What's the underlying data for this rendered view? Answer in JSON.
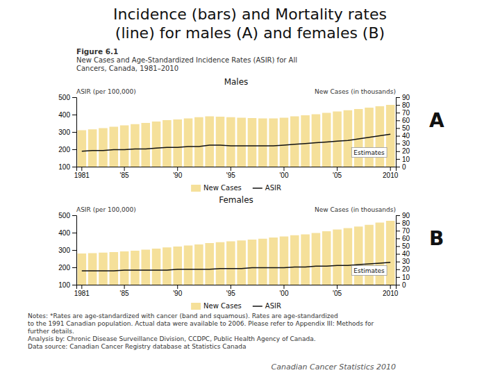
{
  "title": [
    "Incidence (bars) and Mortality rates",
    "(line) for males (A) and females (B)"
  ],
  "subtitle": [
    "Figure 6.1",
    "New Cases and Age-Standardized Incidence Rates (ASIR) for All",
    "Cancers, Canada, 1981–2010"
  ],
  "notes": [
    "Notes: *Rates are age-standardized with cancer (band and squamous). Rates are age-standardized",
    "to the 1991 Canadian population. Actual data were available to 2006. Please refer to Appendix III: Methods for",
    "further details.",
    "Analysis by: Chronic Disease Surveillance Division, CCDPC, Public Health Agency of Canada.",
    "Data source: Canadian Cancer Registry database at Statistics Canada"
  ],
  "source": "Canadian Cancer Statistics 2010",
  "chart_data": [
    {
      "type": "bar",
      "title": "Males",
      "categories": [
        "1981",
        null,
        null,
        null,
        "'85",
        null,
        null,
        null,
        null,
        "'90",
        null,
        null,
        null,
        null,
        "'95",
        null,
        null,
        null,
        null,
        "'00",
        null,
        null,
        null,
        null,
        "'05",
        null,
        null,
        null,
        null,
        "2010"
      ],
      "series": [
        {
          "name": "New Cases",
          "type": "bar",
          "color": "#f5e09a",
          "values": [
            310,
            315,
            322,
            330,
            338,
            345,
            352,
            360,
            368,
            372,
            378,
            385,
            390,
            388,
            385,
            382,
            380,
            378,
            378,
            382,
            390,
            396,
            402,
            410,
            418,
            425,
            432,
            440,
            448,
            456
          ]
        },
        {
          "name": "ASIR",
          "type": "line",
          "color": "#111111",
          "axis": "y2",
          "values": [
            20,
            21,
            21,
            22,
            22,
            23,
            23,
            24,
            25,
            25,
            26,
            26,
            28,
            28,
            27,
            27,
            27,
            27,
            27,
            28,
            29,
            30,
            31,
            32,
            33,
            34,
            36,
            38,
            40,
            42
          ]
        }
      ],
      "ylabel": "ASIR (per 100,000)",
      "y2label": "New Cases (in thousands)",
      "ylim": [
        100,
        500
      ],
      "yticks": [
        100,
        200,
        300,
        400,
        500
      ],
      "y2lim": [
        0,
        90
      ],
      "y2ticks": [
        0,
        10,
        20,
        30,
        40,
        50,
        60,
        70,
        80,
        90
      ],
      "annotations": [
        "Estimates",
        "A"
      ],
      "legend": "bottom",
      "grid": false
    },
    {
      "type": "bar",
      "title": "Females",
      "categories": [
        "1981",
        null,
        null,
        null,
        "'85",
        null,
        null,
        null,
        null,
        "'90",
        null,
        null,
        null,
        null,
        "'95",
        null,
        null,
        null,
        null,
        "'00",
        null,
        null,
        null,
        null,
        "'05",
        null,
        null,
        null,
        null,
        "2010"
      ],
      "series": [
        {
          "name": "New Cases",
          "type": "bar",
          "color": "#f5e09a",
          "values": [
            280,
            282,
            285,
            288,
            292,
            296,
            302,
            308,
            315,
            320,
            326,
            332,
            340,
            345,
            350,
            355,
            360,
            365,
            372,
            378,
            385,
            390,
            398,
            408,
            418,
            426,
            435,
            445,
            458,
            468
          ]
        },
        {
          "name": "ASIR",
          "type": "line",
          "color": "#111111",
          "axis": "y2",
          "values": [
            18,
            18,
            18,
            18,
            19,
            19,
            19,
            19,
            19,
            20,
            20,
            20,
            20,
            21,
            21,
            21,
            22,
            22,
            22,
            22,
            23,
            23,
            24,
            24,
            25,
            25,
            26,
            27,
            28,
            29
          ]
        }
      ],
      "ylabel": "ASIR (per 100,000)",
      "y2label": "New Cases (in thousands)",
      "ylim": [
        100,
        500
      ],
      "yticks": [
        100,
        200,
        300,
        400,
        500
      ],
      "y2lim": [
        0,
        90
      ],
      "y2ticks": [
        0,
        10,
        20,
        30,
        40,
        50,
        60,
        70,
        80,
        90
      ],
      "annotations": [
        "Estimates",
        "B"
      ],
      "legend": "bottom",
      "grid": false
    }
  ]
}
